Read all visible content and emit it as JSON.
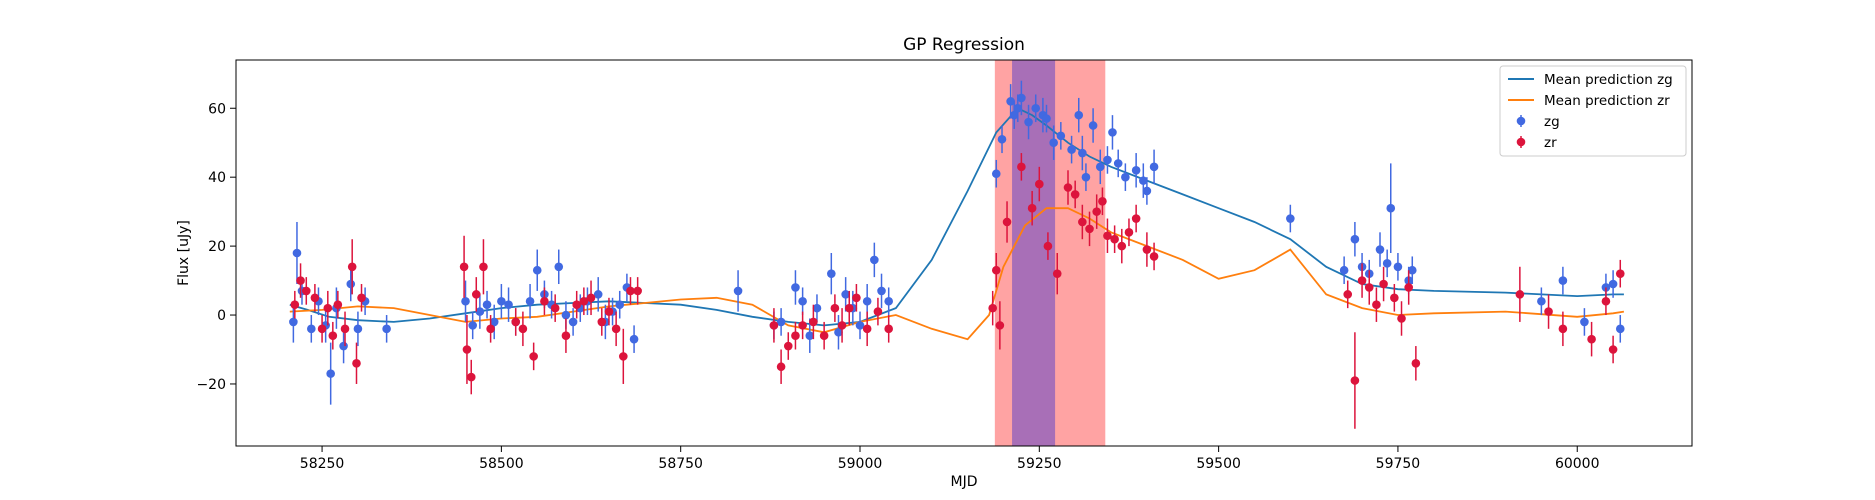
{
  "chart_data": {
    "type": "scatter",
    "title": "GP Regression",
    "xlabel": "MJD",
    "ylabel": "Flux [uJy]",
    "xlim": [
      58130,
      60160
    ],
    "ylim": [
      -38,
      74
    ],
    "xticks": [
      58250,
      58500,
      58750,
      59000,
      59250,
      59500,
      59750,
      60000
    ],
    "yticks": [
      -20,
      0,
      20,
      40,
      60
    ],
    "grid": false,
    "legend_placement": "top-right",
    "shaded_regions": [
      {
        "x0": 59188,
        "x1": 59342,
        "color": "#ff9999"
      },
      {
        "x0": 59212,
        "x1": 59272,
        "color": "#9966bb"
      }
    ],
    "series": [
      {
        "name": "Mean prediction zg",
        "kind": "line",
        "color": "#1f77b4",
        "x": [
          58205,
          58230,
          58260,
          58300,
          58350,
          58400,
          58450,
          58500,
          58550,
          58600,
          58650,
          58700,
          58750,
          58800,
          58850,
          58900,
          58950,
          59000,
          59050,
          59100,
          59150,
          59190,
          59220,
          59240,
          59260,
          59290,
          59320,
          59350,
          59400,
          59450,
          59500,
          59550,
          59600,
          59650,
          59700,
          59750,
          59800,
          59900,
          60000,
          60050,
          60065
        ],
        "y": [
          3,
          1.5,
          -0.5,
          -1.5,
          -2,
          -1,
          0.5,
          2,
          3,
          3.5,
          4,
          3.5,
          3,
          1.5,
          -0.5,
          -2,
          -3,
          -2,
          2,
          16,
          36,
          53,
          60,
          58,
          55,
          50,
          46,
          43,
          39,
          35,
          31,
          27,
          22,
          14,
          9,
          7.5,
          7,
          6.5,
          5.5,
          6,
          6
        ]
      },
      {
        "name": "Mean prediction zr",
        "kind": "line",
        "color": "#ff7f0e",
        "x": [
          58205,
          58250,
          58300,
          58350,
          58400,
          58450,
          58500,
          58550,
          58600,
          58650,
          58700,
          58750,
          58800,
          58850,
          58900,
          58950,
          59000,
          59050,
          59100,
          59150,
          59180,
          59200,
          59230,
          59260,
          59290,
          59320,
          59350,
          59400,
          59450,
          59500,
          59550,
          59600,
          59650,
          59700,
          59750,
          59800,
          59900,
          60000,
          60050,
          60065
        ],
        "y": [
          1,
          1.5,
          2.5,
          2,
          0,
          -2,
          -1,
          -0.5,
          1,
          2.5,
          3.5,
          4.5,
          5,
          3,
          -3,
          -5,
          -2,
          0,
          -4,
          -7,
          0,
          14,
          26,
          31,
          31,
          28,
          24,
          20,
          16,
          10.5,
          13,
          19,
          6,
          2,
          0,
          0.5,
          1,
          -0.5,
          0.5,
          1
        ]
      },
      {
        "name": "zg",
        "kind": "errorbar",
        "color": "#4169e1",
        "x": [
          58210,
          58215,
          58222,
          58235,
          58245,
          58255,
          58262,
          58270,
          58280,
          58290,
          58300,
          58310,
          58340,
          58450,
          58460,
          58470,
          58480,
          58490,
          58500,
          58510,
          58520,
          58540,
          58550,
          58560,
          58570,
          58580,
          58590,
          58600,
          58610,
          58620,
          58635,
          58645,
          58655,
          58665,
          58675,
          58685,
          58830,
          58880,
          58890,
          58910,
          58920,
          58930,
          58940,
          58960,
          58970,
          58980,
          58990,
          59000,
          59010,
          59020,
          59030,
          59040,
          59190,
          59198,
          59210,
          59215,
          59220,
          59225,
          59235,
          59245,
          59255,
          59260,
          59270,
          59280,
          59295,
          59305,
          59310,
          59315,
          59325,
          59335,
          59345,
          59352,
          59360,
          59370,
          59385,
          59395,
          59400,
          59410,
          59600,
          59675,
          59690,
          59700,
          59710,
          59725,
          59735,
          59740,
          59750,
          59765,
          59770,
          59950,
          59980,
          60010,
          60040,
          60050,
          60060
        ],
        "y": [
          -2,
          18,
          7,
          -4,
          4,
          -3,
          -17,
          2,
          -9,
          9,
          -4,
          4,
          -4,
          4,
          -3,
          1,
          3,
          -2,
          4,
          3,
          -2,
          4,
          13,
          6,
          3,
          14,
          0,
          -2,
          2,
          4,
          6,
          -2,
          1,
          3,
          8,
          -7,
          7,
          -3,
          -2,
          8,
          4,
          -6,
          2,
          12,
          -5,
          6,
          2,
          -3,
          4,
          16,
          7,
          4,
          41,
          51,
          62,
          58,
          60,
          63,
          56,
          60,
          58,
          57,
          50,
          52,
          48,
          58,
          47,
          40,
          55,
          43,
          45,
          53,
          44,
          40,
          42,
          39,
          36,
          43,
          28,
          13,
          22,
          14,
          12,
          19,
          15,
          31,
          14,
          10,
          13,
          4,
          10,
          -2,
          8,
          9,
          -4
        ],
        "err": [
          6,
          9,
          4,
          4,
          4,
          5,
          9,
          6,
          5,
          5,
          5,
          4,
          4,
          6,
          4,
          5,
          4,
          5,
          5,
          5,
          4,
          5,
          6,
          4,
          4,
          5,
          4,
          4,
          4,
          4,
          5,
          5,
          4,
          4,
          4,
          4,
          6,
          4,
          4,
          5,
          4,
          5,
          4,
          6,
          5,
          5,
          5,
          4,
          5,
          5,
          5,
          4,
          4,
          4,
          5,
          4,
          4,
          5,
          5,
          4,
          5,
          4,
          5,
          4,
          4,
          5,
          5,
          4,
          5,
          5,
          4,
          5,
          4,
          4,
          5,
          5,
          4,
          5,
          4,
          4,
          5,
          4,
          4,
          5,
          4,
          13,
          4,
          4,
          4,
          4,
          4,
          4,
          4,
          4,
          4
        ]
      },
      {
        "name": "zr",
        "kind": "errorbar",
        "color": "#dc143c",
        "x": [
          58212,
          58220,
          58228,
          58240,
          58250,
          58258,
          58265,
          58272,
          58282,
          58292,
          58298,
          58305,
          58448,
          58452,
          58458,
          58465,
          58475,
          58485,
          58520,
          58530,
          58545,
          58560,
          58575,
          58590,
          58605,
          58615,
          58625,
          58640,
          58650,
          58660,
          58670,
          58680,
          58690,
          58880,
          58890,
          58900,
          58910,
          58920,
          58935,
          58950,
          58965,
          58975,
          58985,
          58995,
          59010,
          59025,
          59040,
          59185,
          59190,
          59195,
          59205,
          59225,
          59240,
          59250,
          59262,
          59275,
          59290,
          59300,
          59310,
          59320,
          59330,
          59338,
          59345,
          59355,
          59365,
          59375,
          59385,
          59400,
          59410,
          59680,
          59690,
          59700,
          59710,
          59720,
          59730,
          59745,
          59755,
          59765,
          59775,
          59920,
          59960,
          59980,
          60020,
          60040,
          60050,
          60060
        ],
        "y": [
          3,
          10,
          7,
          5,
          -4,
          2,
          -6,
          3,
          -4,
          14,
          -14,
          5,
          14,
          -10,
          -18,
          6,
          14,
          -4,
          -2,
          -4,
          -12,
          4,
          2,
          -6,
          3,
          4,
          5,
          -2,
          1,
          -4,
          -12,
          7,
          7,
          -3,
          -15,
          -9,
          -6,
          -3,
          -2,
          -6,
          2,
          -3,
          2,
          5,
          -4,
          1,
          -4,
          2,
          13,
          -3,
          27,
          43,
          31,
          38,
          20,
          12,
          37,
          35,
          27,
          25,
          30,
          33,
          23,
          22,
          20,
          24,
          28,
          19,
          17,
          6,
          -19,
          10,
          8,
          3,
          9,
          5,
          -1,
          8,
          -14,
          6,
          1,
          -4,
          -7,
          4,
          -10,
          12
        ],
        "err": [
          4,
          5,
          4,
          4,
          4,
          5,
          4,
          4,
          5,
          8,
          6,
          4,
          9,
          10,
          5,
          5,
          8,
          4,
          4,
          5,
          4,
          4,
          4,
          5,
          4,
          4,
          5,
          4,
          4,
          5,
          8,
          4,
          4,
          5,
          5,
          4,
          4,
          4,
          5,
          4,
          4,
          5,
          5,
          4,
          5,
          4,
          4,
          5,
          5,
          7,
          6,
          4,
          5,
          5,
          4,
          6,
          5,
          4,
          5,
          5,
          5,
          4,
          5,
          4,
          5,
          4,
          4,
          5,
          4,
          4,
          14,
          5,
          5,
          5,
          5,
          4,
          5,
          5,
          5,
          8,
          5,
          5,
          5,
          4,
          4,
          4
        ]
      }
    ],
    "legend": [
      {
        "label": "Mean prediction zg",
        "kind": "line",
        "color": "#1f77b4"
      },
      {
        "label": "Mean prediction zr",
        "kind": "line",
        "color": "#ff7f0e"
      },
      {
        "label": "zg",
        "kind": "marker",
        "color": "#4169e1"
      },
      {
        "label": "zr",
        "kind": "marker",
        "color": "#dc143c"
      }
    ]
  }
}
